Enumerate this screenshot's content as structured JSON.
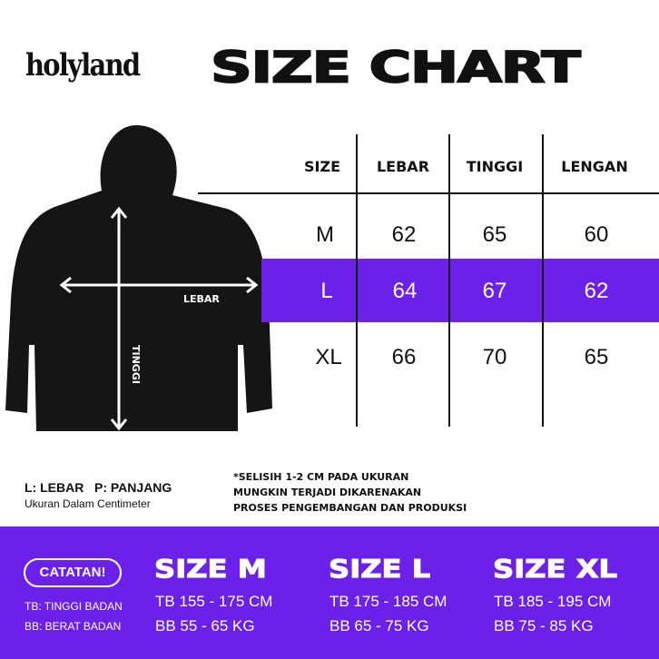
{
  "brand": "holyland",
  "title": "SIZE CHART",
  "diagram": {
    "width_label": "LEBAR",
    "height_label": "TINGGI"
  },
  "table": {
    "headers": [
      "SIZE",
      "LEBAR",
      "TINGGI",
      "LENGAN"
    ],
    "rows": [
      [
        "M",
        "62",
        "65",
        "60"
      ],
      [
        "L",
        "64",
        "67",
        "62"
      ],
      [
        "XL",
        "66",
        "70",
        "65"
      ]
    ],
    "highlight_row": "L"
  },
  "legend": {
    "line1": "L: LEBAR   P: PANJANG",
    "line2": "Ukuran Dalam Centimeter"
  },
  "disclaimer": [
    "*SELISIH 1-2 CM PADA UKURAN",
    "MUNGKIN TERJADI DIKARENAKAN",
    "PROSES PENGEMBANGAN DAN PRODUKSI"
  ],
  "notes": {
    "badge": "CATATAN!",
    "tb": "TB: TINGGI BADAN",
    "bb": "BB: BERAT BADAN"
  },
  "sizes": [
    {
      "label": "SIZE M",
      "tb": "TB 155 - 175 CM",
      "bb": "BB 55 - 65 KG"
    },
    {
      "label": "SIZE L",
      "tb": "TB 175 - 185 CM",
      "bb": "BB 65 - 75 KG"
    },
    {
      "label": "SIZE XL",
      "tb": "TB 185 - 195 CM",
      "bb": "BB 75 - 85 KG"
    }
  ],
  "colors": {
    "accent": "#6b21e8",
    "text": "#111111"
  }
}
